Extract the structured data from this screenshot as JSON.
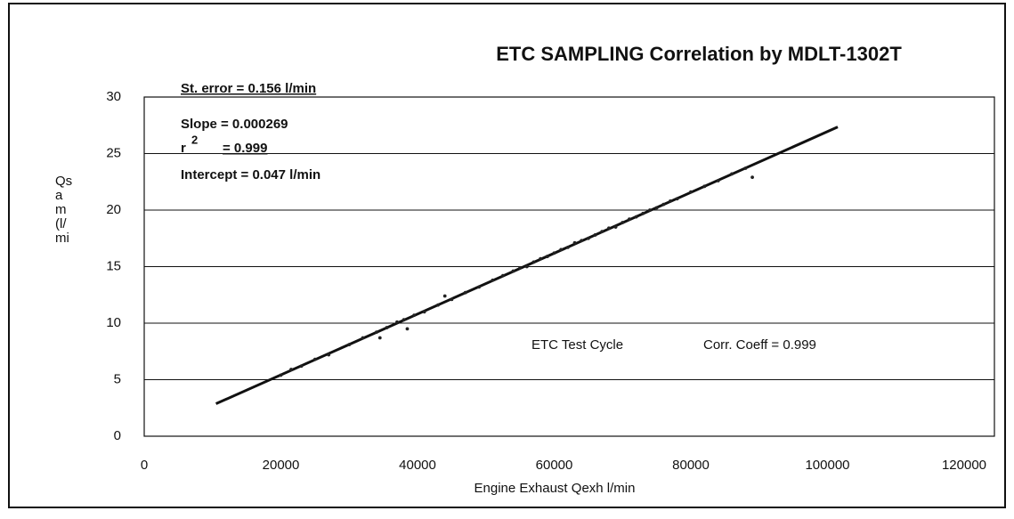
{
  "chart_data": {
    "type": "scatter",
    "title": "ETC SAMPLING Correlation by MDLT-1302T",
    "xlabel": "Engine Exhaust Qexh l/min",
    "ylabel_lines": [
      "Qs",
      "a",
      "m",
      "(l/",
      "mi"
    ],
    "annotations": [
      "St. error = 0.156 l/min",
      "Slope = 0.000269",
      "Intercept = 0.047 l/min",
      "ETC Test Cycle",
      "Corr. Coeff = 0.999"
    ],
    "r_squared_label": {
      "base": "r",
      "sup": "2",
      "text": "= 0.999"
    },
    "x": [
      20000,
      21500,
      23000,
      25000,
      27000,
      30000,
      32000,
      34000,
      34500,
      35500,
      37000,
      38000,
      38500,
      39500,
      41000,
      43000,
      44000,
      45000,
      47000,
      49000,
      51000,
      52500,
      54000,
      55000,
      56000,
      57000,
      58000,
      59000,
      60000,
      61000,
      62000,
      63000,
      64000,
      65000,
      66000,
      67000,
      68000,
      69000,
      70000,
      71000,
      72000,
      73000,
      74000,
      75000,
      76000,
      77000,
      78000,
      80000,
      82000,
      84000,
      86000,
      88000,
      89000
    ],
    "values": [
      5.4,
      5.9,
      6.2,
      6.8,
      7.2,
      8.1,
      8.7,
      9.2,
      8.7,
      9.6,
      10.1,
      10.3,
      9.5,
      10.7,
      11.0,
      11.6,
      12.4,
      12.1,
      12.7,
      13.2,
      13.8,
      14.2,
      14.6,
      14.9,
      15.0,
      15.4,
      15.7,
      15.9,
      16.2,
      16.5,
      16.7,
      17.1,
      17.3,
      17.5,
      17.8,
      18.1,
      18.4,
      18.5,
      18.9,
      19.2,
      19.4,
      19.7,
      20.0,
      20.2,
      20.5,
      20.8,
      21.0,
      21.6,
      22.1,
      22.6,
      23.2,
      23.7,
      22.9
    ],
    "color": "#222222",
    "fit_line": {
      "x": [
        10500,
        101500
      ],
      "y": [
        2.87,
        27.35
      ]
    },
    "xlim": [
      0,
      120000
    ],
    "xticks": [
      0,
      20000,
      40000,
      60000,
      80000,
      100000,
      120000
    ],
    "ylim": [
      0,
      30
    ],
    "yticks": [
      0,
      5,
      10,
      15,
      20,
      25,
      30
    ],
    "grid": true
  }
}
